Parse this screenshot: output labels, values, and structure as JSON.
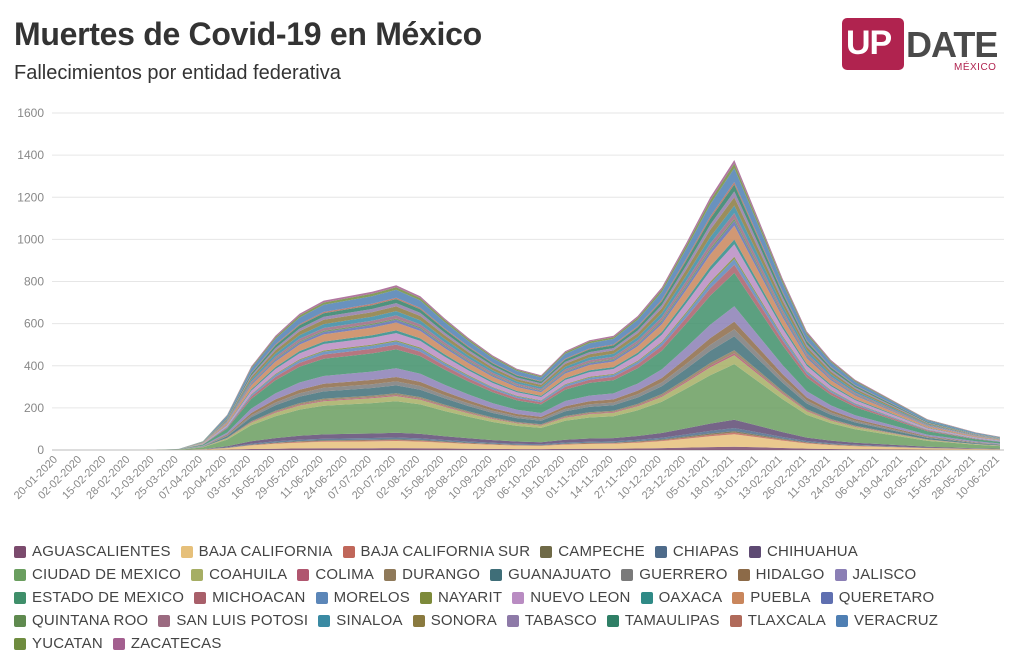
{
  "title": "Muertes de Covid-19 en México",
  "subtitle": "Fallecimientos por entidad federativa",
  "logo": {
    "main_a": "UP",
    "main_b": "DATE",
    "sub": "MÉXICO",
    "color": "#b0234f"
  },
  "chart_data": {
    "type": "area",
    "stacked": true,
    "title": "Muertes de Covid-19 en México",
    "subtitle": "Fallecimientos por entidad federativa",
    "ylim": [
      0,
      1600
    ],
    "yticks": [
      0,
      200,
      400,
      600,
      800,
      1000,
      1200,
      1400,
      1600
    ],
    "xticks": [
      "20-01-2020",
      "02-02-2020",
      "15-02-2020",
      "28-02-2020",
      "12-03-2020",
      "25-03-2020",
      "07-04-2020",
      "20-04-2020",
      "03-05-2020",
      "16-05-2020",
      "29-05-2020",
      "11-06-2020",
      "24-06-2020",
      "07-07-2020",
      "20-07-2020",
      "02-08-2020",
      "15-08-2020",
      "28-08-2020",
      "10-09-2020",
      "23-09-2020",
      "06-10-2020",
      "19-10-2020",
      "01-11-2020",
      "14-11-2020",
      "27-11-2020",
      "10-12-2020",
      "23-12-2020",
      "05-01-2021",
      "18-01-2021",
      "31-01-2021",
      "13-02-2021",
      "26-02-2021",
      "11-03-2021",
      "24-03-2021",
      "06-04-2021",
      "19-04-2021",
      "02-05-2021",
      "15-05-2021",
      "28-05-2021",
      "10-06-2021"
    ],
    "x": [
      "20-01-2020",
      "02-02-2020",
      "15-02-2020",
      "28-02-2020",
      "12-03-2020",
      "25-03-2020",
      "07-04-2020",
      "20-04-2020",
      "03-05-2020",
      "16-05-2020",
      "29-05-2020",
      "11-06-2020",
      "24-06-2020",
      "07-07-2020",
      "20-07-2020",
      "02-08-2020",
      "15-08-2020",
      "28-08-2020",
      "10-09-2020",
      "23-09-2020",
      "06-10-2020",
      "19-10-2020",
      "01-11-2020",
      "14-11-2020",
      "27-11-2020",
      "10-12-2020",
      "23-12-2020",
      "05-01-2021",
      "18-01-2021",
      "31-01-2021",
      "13-02-2021",
      "26-02-2021",
      "11-03-2021",
      "24-03-2021",
      "06-04-2021",
      "19-04-2021",
      "02-05-2021",
      "15-05-2021",
      "28-05-2021",
      "10-06-2021"
    ],
    "total": [
      0,
      0,
      0,
      0,
      0,
      5,
      40,
      160,
      380,
      520,
      620,
      680,
      700,
      720,
      750,
      700,
      600,
      510,
      430,
      370,
      340,
      450,
      500,
      520,
      610,
      740,
      940,
      1150,
      1320,
      1050,
      780,
      540,
      410,
      320,
      260,
      200,
      140,
      110,
      80,
      60
    ],
    "series": [
      {
        "name": "AGUASCALIENTES",
        "color": "#7b4b6d",
        "share": 0.012
      },
      {
        "name": "BAJA CALIFORNIA",
        "color": "#e6c07a",
        "share": 0.045
      },
      {
        "name": "BAJA CALIFORNIA SUR",
        "color": "#c0675a",
        "share": 0.006
      },
      {
        "name": "CAMPECHE",
        "color": "#6f6a47",
        "share": 0.005
      },
      {
        "name": "CHIAPAS",
        "color": "#4e6b8a",
        "share": 0.011
      },
      {
        "name": "CHIHUAHUA",
        "color": "#5e4a73",
        "share": 0.03
      },
      {
        "name": "CIUDAD DE MEXICO",
        "color": "#6a9e5f",
        "share": 0.2
      },
      {
        "name": "COAHUILA",
        "color": "#a6ae64",
        "share": 0.032
      },
      {
        "name": "COLIMA",
        "color": "#b0566f",
        "share": 0.007
      },
      {
        "name": "DURANGO",
        "color": "#8f7a5a",
        "share": 0.011
      },
      {
        "name": "GUANAJUATO",
        "color": "#3f6e78",
        "share": 0.05
      },
      {
        "name": "GUERRERO",
        "color": "#7a7a7a",
        "share": 0.025
      },
      {
        "name": "HIDALGO",
        "color": "#8c6a48",
        "share": 0.028
      },
      {
        "name": "JALISCO",
        "color": "#8b7fb5",
        "share": 0.055
      },
      {
        "name": "ESTADO DE MEXICO",
        "color": "#3f8f6a",
        "share": 0.12
      },
      {
        "name": "MICHOACAN",
        "color": "#a85f6a",
        "share": 0.03
      },
      {
        "name": "MORELOS",
        "color": "#5b86b8",
        "share": 0.02
      },
      {
        "name": "NAYARIT",
        "color": "#7d8a3a",
        "share": 0.008
      },
      {
        "name": "NUEVO LEON",
        "color": "#b98cc2",
        "share": 0.045
      },
      {
        "name": "OAXACA",
        "color": "#2f8a86",
        "share": 0.017
      },
      {
        "name": "PUEBLA",
        "color": "#c9865c",
        "share": 0.05
      },
      {
        "name": "QUERETARO",
        "color": "#5f6fb0",
        "share": 0.017
      },
      {
        "name": "QUINTANA ROO",
        "color": "#5f8a4f",
        "share": 0.008
      },
      {
        "name": "SAN LUIS POTOSI",
        "color": "#9b6a80",
        "share": 0.02
      },
      {
        "name": "SINALOA",
        "color": "#3a8aa3",
        "share": 0.027
      },
      {
        "name": "SONORA",
        "color": "#8a7a3f",
        "share": 0.03
      },
      {
        "name": "TABASCO",
        "color": "#8e7aa8",
        "share": 0.021
      },
      {
        "name": "TAMAULIPAS",
        "color": "#2f7f66",
        "share": 0.025
      },
      {
        "name": "TLAXCALA",
        "color": "#b06a5a",
        "share": 0.009
      },
      {
        "name": "VERACRUZ",
        "color": "#4f7fb3",
        "share": 0.05
      },
      {
        "name": "YUCATAN",
        "color": "#6f8c3f",
        "share": 0.016
      },
      {
        "name": "ZACATECAS",
        "color": "#a35f8f",
        "share": 0.013
      }
    ],
    "grid": true
  }
}
